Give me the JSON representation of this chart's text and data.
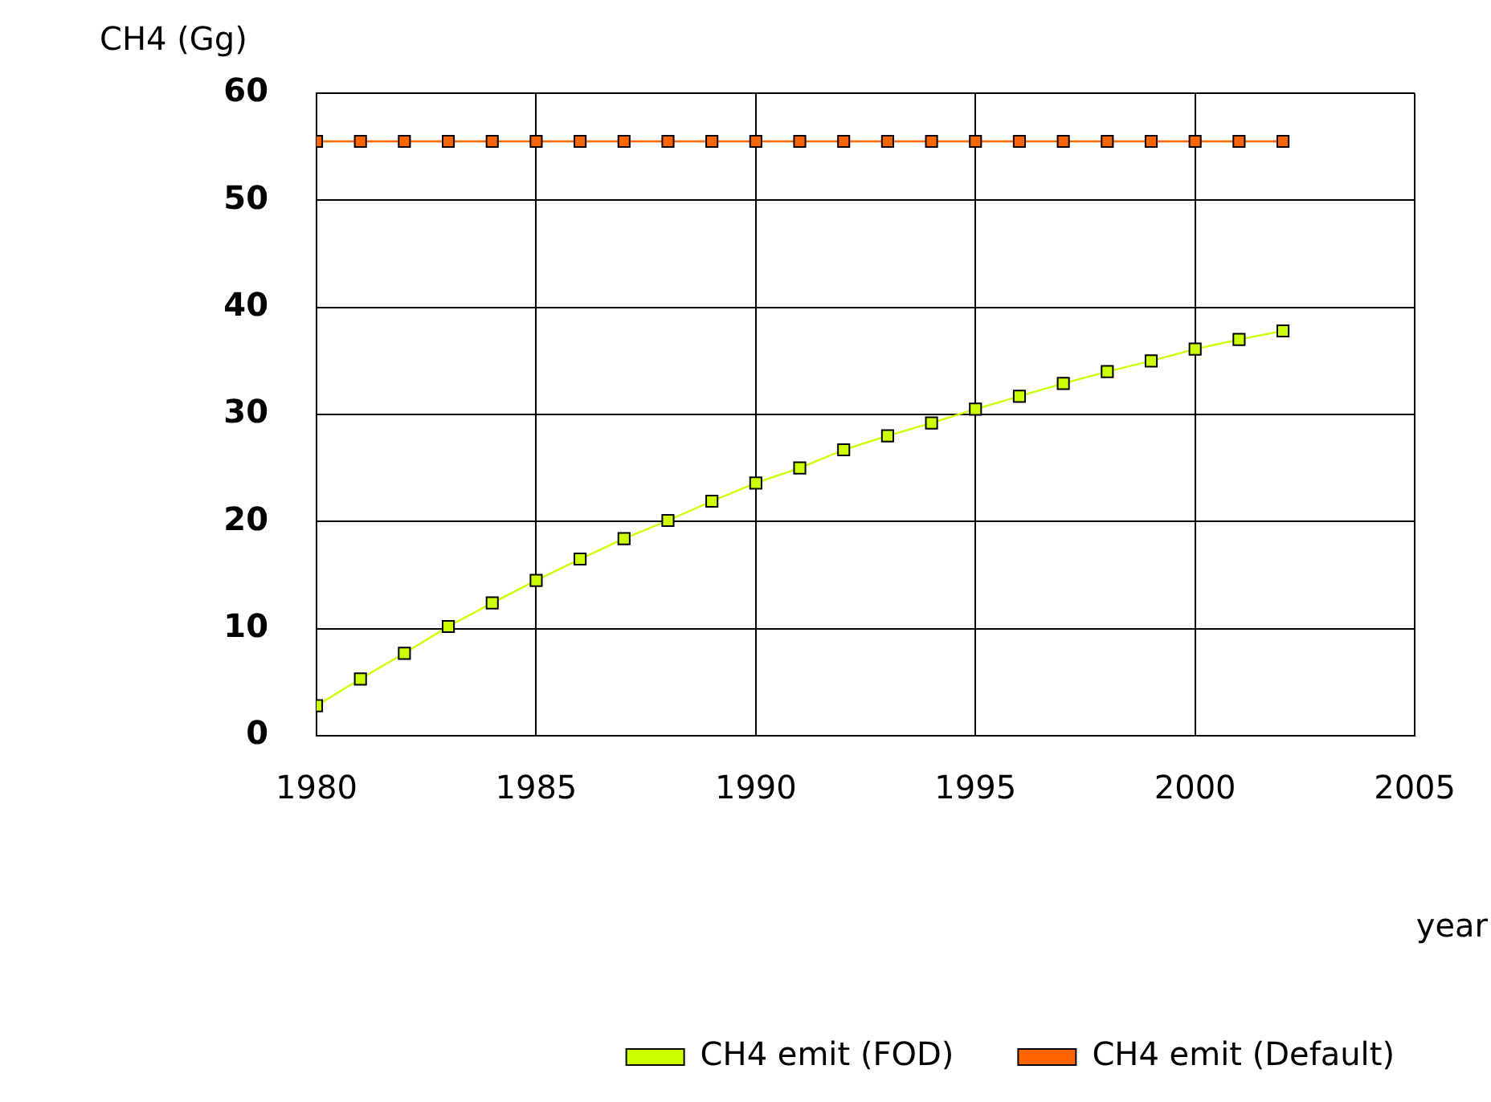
{
  "chart_data": {
    "type": "line",
    "xlabel": "year",
    "ylabel": "CH4 (Gg)",
    "x": [
      1980,
      1981,
      1982,
      1983,
      1984,
      1985,
      1986,
      1987,
      1988,
      1989,
      1990,
      1991,
      1992,
      1993,
      1994,
      1995,
      1996,
      1997,
      1998,
      1999,
      2000,
      2001,
      2002
    ],
    "series": [
      {
        "name": "CH4 emit (FOD)",
        "color": "#ccff00",
        "values": [
          2.8,
          5.3,
          7.7,
          10.2,
          12.4,
          14.5,
          16.5,
          18.4,
          20.1,
          21.9,
          23.6,
          25.0,
          26.7,
          28.0,
          29.2,
          30.5,
          31.7,
          32.9,
          34.0,
          35.0,
          36.1,
          37.0,
          37.8
        ]
      },
      {
        "name": "CH4 emit (Default)",
        "color": "#ff6600",
        "values": [
          55.5,
          55.5,
          55.5,
          55.5,
          55.5,
          55.5,
          55.5,
          55.5,
          55.5,
          55.5,
          55.5,
          55.5,
          55.5,
          55.5,
          55.5,
          55.5,
          55.5,
          55.5,
          55.5,
          55.5,
          55.5,
          55.5,
          55.5
        ]
      }
    ],
    "xlim": [
      1980,
      2005
    ],
    "xticks": [
      1980,
      1985,
      1990,
      1995,
      2000,
      2005
    ],
    "ylim": [
      0,
      60
    ],
    "yticks": [
      0,
      10,
      20,
      30,
      40,
      50,
      60
    ],
    "grid": true,
    "legend": "bottom right",
    "marker": "square",
    "line_style": "solid"
  }
}
